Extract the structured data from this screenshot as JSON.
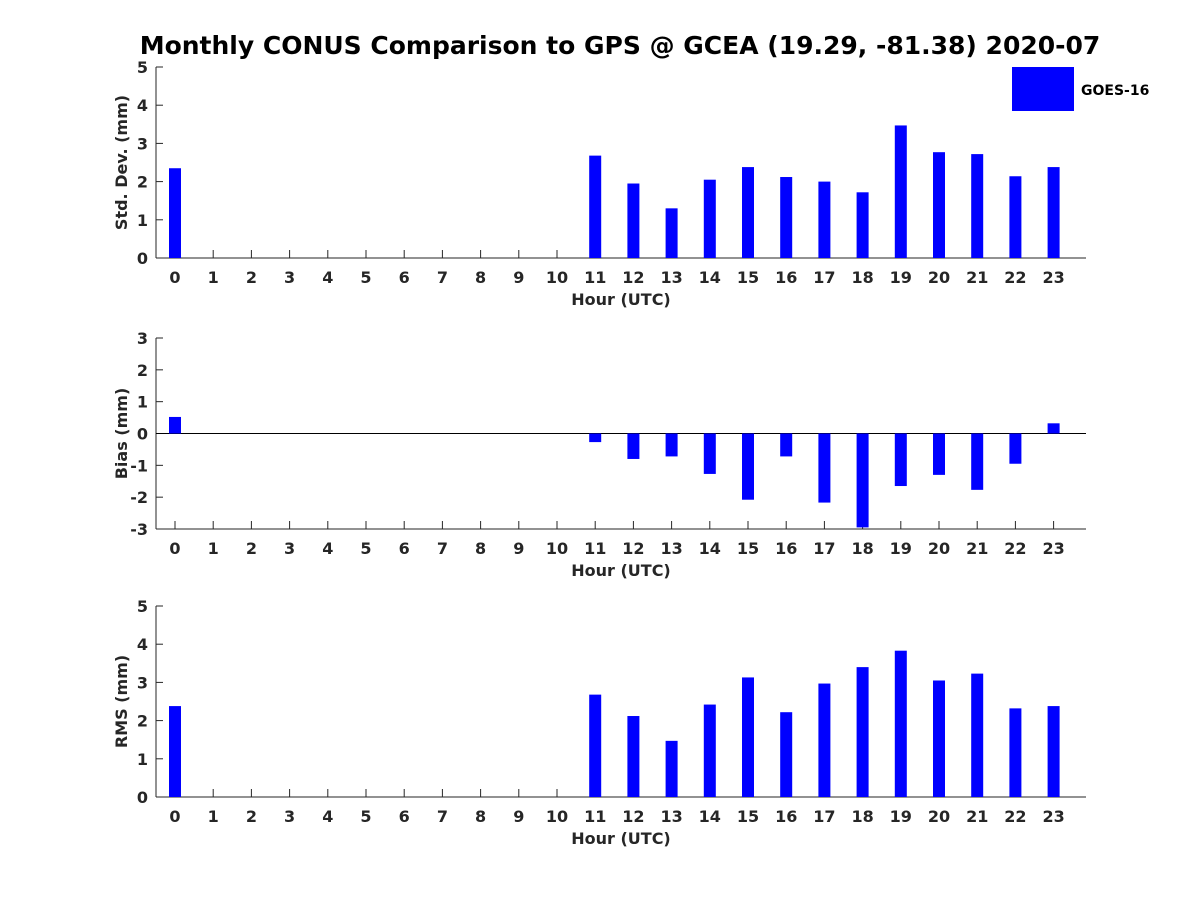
{
  "figure": {
    "title": "Monthly CONUS Comparison to GPS @ GCEA (19.29, -81.38) 2020-07"
  },
  "legend": {
    "label": "GOES-16",
    "color": "#0000ff"
  },
  "chart_data": [
    {
      "type": "bar",
      "id": "std",
      "ylabel": "Std. Dev. (mm)",
      "xlabel": "Hour (UTC)",
      "ylim": [
        0,
        5
      ],
      "yticks": [
        0,
        1,
        2,
        3,
        4,
        5
      ],
      "categories": [
        0,
        1,
        2,
        3,
        4,
        5,
        6,
        7,
        8,
        9,
        10,
        11,
        12,
        13,
        14,
        15,
        16,
        17,
        18,
        19,
        20,
        21,
        22,
        23
      ],
      "series": [
        {
          "name": "GOES-16",
          "values": [
            2.35,
            null,
            null,
            null,
            null,
            null,
            null,
            null,
            null,
            null,
            null,
            2.68,
            1.95,
            1.3,
            2.05,
            2.38,
            2.12,
            2.0,
            1.72,
            3.47,
            2.77,
            2.72,
            2.14,
            2.38
          ]
        }
      ]
    },
    {
      "type": "bar",
      "id": "bias",
      "ylabel": "Bias (mm)",
      "xlabel": "Hour (UTC)",
      "ylim": [
        -3,
        3
      ],
      "yticks": [
        -3,
        -2,
        -1,
        0,
        1,
        2,
        3
      ],
      "zero_line": true,
      "categories": [
        0,
        1,
        2,
        3,
        4,
        5,
        6,
        7,
        8,
        9,
        10,
        11,
        12,
        13,
        14,
        15,
        16,
        17,
        18,
        19,
        20,
        21,
        22,
        23
      ],
      "series": [
        {
          "name": "GOES-16",
          "values": [
            0.52,
            null,
            null,
            null,
            null,
            null,
            null,
            null,
            null,
            null,
            null,
            -0.27,
            -0.8,
            -0.72,
            -1.27,
            -2.08,
            -0.72,
            -2.17,
            -2.95,
            -1.65,
            -1.3,
            -1.77,
            -0.95,
            0.32
          ]
        }
      ]
    },
    {
      "type": "bar",
      "id": "rms",
      "ylabel": "RMS (mm)",
      "xlabel": "Hour (UTC)",
      "ylim": [
        0,
        5
      ],
      "yticks": [
        0,
        1,
        2,
        3,
        4,
        5
      ],
      "categories": [
        0,
        1,
        2,
        3,
        4,
        5,
        6,
        7,
        8,
        9,
        10,
        11,
        12,
        13,
        14,
        15,
        16,
        17,
        18,
        19,
        20,
        21,
        22,
        23
      ],
      "series": [
        {
          "name": "GOES-16",
          "values": [
            2.38,
            null,
            null,
            null,
            null,
            null,
            null,
            null,
            null,
            null,
            null,
            2.68,
            2.12,
            1.47,
            2.42,
            3.13,
            2.22,
            2.97,
            3.4,
            3.83,
            3.05,
            3.23,
            2.32,
            2.38
          ]
        }
      ]
    }
  ]
}
